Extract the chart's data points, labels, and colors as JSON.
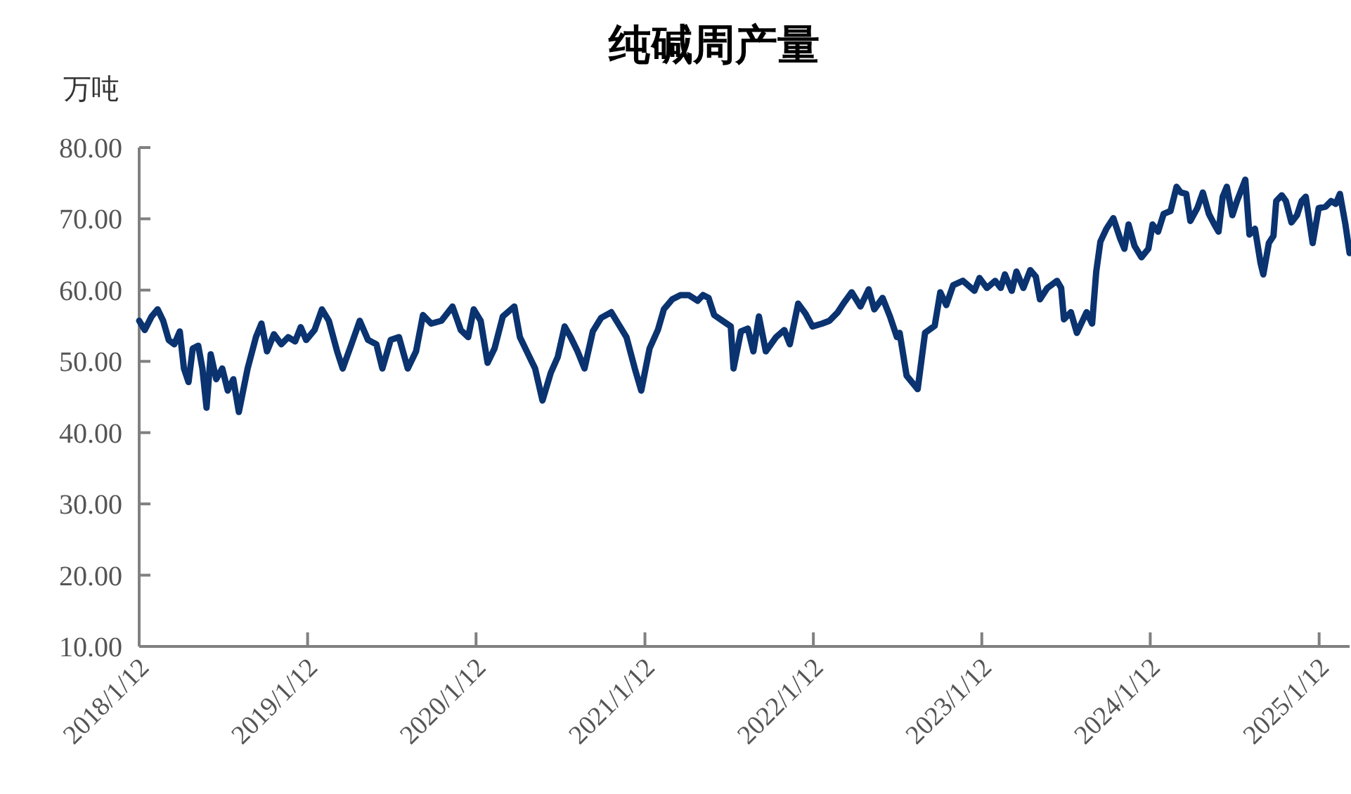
{
  "chart_data": {
    "type": "line",
    "title": "纯碱周产量",
    "ylabel": "万吨",
    "xlim": [
      "2018-01-12",
      "2025-03-19"
    ],
    "ylim": [
      10,
      80
    ],
    "xticks": [
      {
        "value": "2018-01-12",
        "label": "2018/1/12"
      },
      {
        "value": "2019-01-12",
        "label": "2019/1/12"
      },
      {
        "value": "2020-01-12",
        "label": "2020/1/12"
      },
      {
        "value": "2021-01-12",
        "label": "2021/1/12"
      },
      {
        "value": "2022-01-12",
        "label": "2022/1/12"
      },
      {
        "value": "2023-01-12",
        "label": "2023/1/12"
      },
      {
        "value": "2024-01-12",
        "label": "2024/1/12"
      },
      {
        "value": "2025-01-12",
        "label": "2025/1/12"
      }
    ],
    "yticks": [
      {
        "value": 10,
        "label": "10.00"
      },
      {
        "value": 20,
        "label": "20.00"
      },
      {
        "value": 30,
        "label": "30.00"
      },
      {
        "value": 40,
        "label": "40.00"
      },
      {
        "value": 50,
        "label": "50.00"
      },
      {
        "value": 60,
        "label": "60.00"
      },
      {
        "value": 70,
        "label": "70.00"
      },
      {
        "value": 80,
        "label": "80.00"
      }
    ],
    "series": [
      {
        "color": "#0a3370",
        "x": [
          "2018-01-12",
          "2018-01-24",
          "2018-02-08",
          "2018-02-21",
          "2018-03-05",
          "2018-03-17",
          "2018-03-29",
          "2018-04-10",
          "2018-04-19",
          "2018-04-29",
          "2018-05-08",
          "2018-05-20",
          "2018-05-29",
          "2018-06-07",
          "2018-06-16",
          "2018-06-28",
          "2018-07-11",
          "2018-07-23",
          "2018-08-04",
          "2018-08-16",
          "2018-09-04",
          "2018-09-22",
          "2018-10-04",
          "2018-10-16",
          "2018-10-31",
          "2018-11-16",
          "2018-12-01",
          "2018-12-16",
          "2018-12-28",
          "2019-01-09",
          "2019-01-27",
          "2019-02-12",
          "2019-02-27",
          "2019-03-17",
          "2019-03-29",
          "2019-04-17",
          "2019-05-05",
          "2019-05-23",
          "2019-06-10",
          "2019-06-23",
          "2019-07-11",
          "2019-07-29",
          "2019-08-17",
          "2019-09-04",
          "2019-09-19",
          "2019-10-07",
          "2019-10-29",
          "2019-11-22",
          "2019-12-10",
          "2019-12-26",
          "2020-01-07",
          "2020-01-22",
          "2020-02-06",
          "2020-02-21",
          "2020-03-10",
          "2020-04-04",
          "2020-04-16",
          "2020-05-04",
          "2020-05-19",
          "2020-06-04",
          "2020-06-22",
          "2020-07-07",
          "2020-07-22",
          "2020-08-04",
          "2020-08-19",
          "2020-09-03",
          "2020-09-21",
          "2020-10-09",
          "2020-10-31",
          "2020-11-15",
          "2020-12-03",
          "2020-12-21",
          "2021-01-04",
          "2021-01-22",
          "2021-02-09",
          "2021-02-22",
          "2021-03-12",
          "2021-03-30",
          "2021-04-17",
          "2021-05-06",
          "2021-05-18",
          "2021-05-30",
          "2021-06-11",
          "2021-06-29",
          "2021-07-17",
          "2021-07-23",
          "2021-08-08",
          "2021-08-23",
          "2021-09-04",
          "2021-09-16",
          "2021-10-01",
          "2021-10-23",
          "2021-11-10",
          "2021-11-22",
          "2021-12-10",
          "2021-12-26",
          "2022-01-10",
          "2022-01-31",
          "2022-02-16",
          "2022-03-06",
          "2022-03-18",
          "2022-04-05",
          "2022-04-24",
          "2022-05-12",
          "2022-05-24",
          "2022-06-11",
          "2022-06-27",
          "2022-07-12",
          "2022-07-18",
          "2022-08-02",
          "2022-08-26",
          "2022-09-11",
          "2022-10-02",
          "2022-10-14",
          "2022-10-27",
          "2022-11-11",
          "2022-12-02",
          "2022-12-27",
          "2023-01-07",
          "2023-01-23",
          "2023-02-10",
          "2023-02-22",
          "2023-03-03",
          "2023-03-18",
          "2023-03-28",
          "2023-04-12",
          "2023-04-27",
          "2023-05-09",
          "2023-05-18",
          "2023-06-03",
          "2023-06-24",
          "2023-07-03",
          "2023-07-09",
          "2023-07-24",
          "2023-08-06",
          "2023-08-27",
          "2023-09-08",
          "2023-09-17",
          "2023-09-26",
          "2023-10-09",
          "2023-10-24",
          "2023-11-08",
          "2023-11-17",
          "2023-11-26",
          "2023-12-09",
          "2023-12-24",
          "2024-01-08",
          "2024-01-17",
          "2024-01-29",
          "2024-02-10",
          "2024-02-25",
          "2024-03-09",
          "2024-03-18",
          "2024-03-30",
          "2024-04-08",
          "2024-04-23",
          "2024-05-05",
          "2024-05-18",
          "2024-05-30",
          "2024-06-08",
          "2024-06-17",
          "2024-06-26",
          "2024-07-08",
          "2024-07-18",
          "2024-08-05",
          "2024-08-14",
          "2024-08-26",
          "2024-09-07",
          "2024-09-13",
          "2024-09-25",
          "2024-10-05",
          "2024-10-11",
          "2024-10-23",
          "2024-11-01",
          "2024-11-13",
          "2024-11-25",
          "2024-12-05",
          "2024-12-14",
          "2024-12-29",
          "2025-01-11",
          "2025-01-26",
          "2025-02-07",
          "2025-02-17",
          "2025-02-26",
          "2025-03-10",
          "2025-03-19"
        ],
        "values": [
          55.7,
          54.4,
          56.3,
          57.3,
          55.7,
          53.0,
          52.4,
          54.2,
          49.0,
          47.1,
          51.8,
          52.2,
          49.0,
          43.5,
          51.0,
          47.5,
          49.0,
          45.9,
          47.5,
          42.9,
          49.0,
          53.4,
          55.3,
          51.4,
          53.8,
          52.4,
          53.4,
          52.8,
          54.8,
          53.0,
          54.4,
          57.3,
          55.7,
          51.4,
          49.0,
          52.4,
          55.7,
          53.0,
          52.4,
          49.0,
          53.0,
          53.4,
          49.0,
          51.4,
          56.5,
          55.3,
          55.7,
          57.7,
          54.4,
          53.4,
          57.3,
          55.7,
          49.8,
          51.8,
          56.3,
          57.7,
          53.4,
          51.0,
          49.0,
          44.5,
          48.4,
          50.6,
          54.9,
          53.4,
          51.4,
          49.0,
          54.2,
          56.1,
          56.9,
          55.3,
          53.4,
          49.0,
          45.9,
          51.8,
          54.4,
          57.3,
          58.7,
          59.3,
          59.3,
          58.5,
          59.3,
          58.9,
          56.5,
          55.7,
          54.9,
          49.0,
          54.2,
          54.6,
          51.4,
          56.3,
          51.4,
          53.4,
          54.4,
          52.4,
          58.1,
          56.7,
          54.9,
          55.3,
          55.7,
          56.9,
          58.1,
          59.7,
          57.7,
          60.1,
          57.3,
          58.9,
          56.3,
          53.4,
          54.0,
          48.0,
          46.1,
          54.0,
          55.0,
          59.7,
          57.9,
          60.7,
          61.3,
          59.9,
          61.7,
          60.3,
          61.3,
          60.3,
          62.2,
          59.9,
          62.6,
          60.3,
          62.8,
          61.9,
          58.7,
          60.3,
          61.3,
          60.3,
          55.9,
          56.9,
          54.0,
          56.9,
          55.3,
          62.6,
          66.8,
          68.6,
          70.1,
          67.2,
          65.8,
          69.2,
          66.2,
          64.6,
          65.8,
          69.2,
          68.2,
          70.7,
          71.1,
          74.5,
          73.7,
          73.5,
          69.7,
          71.5,
          73.7,
          70.7,
          69.2,
          68.2,
          73.1,
          74.5,
          70.5,
          72.5,
          75.5,
          67.8,
          68.6,
          63.8,
          62.2,
          66.6,
          67.6,
          72.5,
          73.3,
          72.5,
          69.5,
          70.5,
          72.5,
          73.1,
          66.6,
          71.5,
          71.7,
          72.5,
          72.1,
          73.5,
          69.2,
          65.2
        ]
      }
    ]
  }
}
